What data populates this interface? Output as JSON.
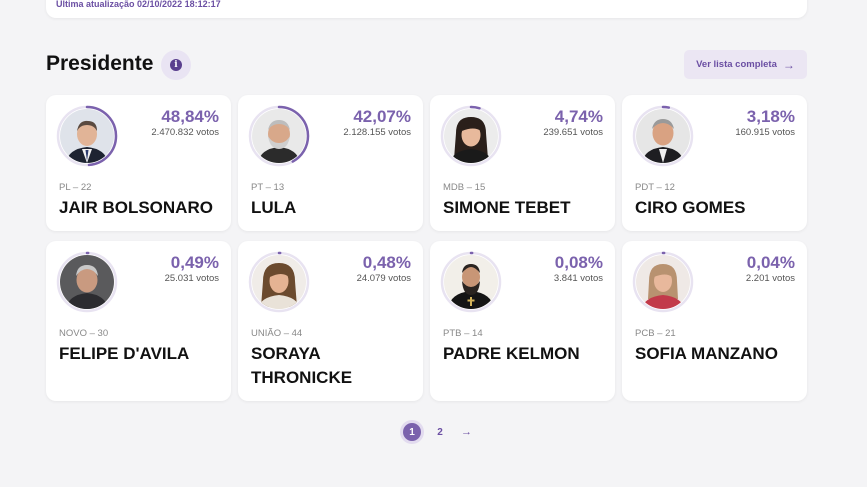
{
  "header": {
    "updated": "Última atualização 02/10/2022 18:12:17"
  },
  "section": {
    "title": "Presidente",
    "info_icon": "info-icon",
    "list_button": "Ver lista completa",
    "list_arrow": "→"
  },
  "colors": {
    "accent": "#7b62ad",
    "ring_track": "#e8e3f1"
  },
  "candidates": [
    {
      "pct": "48,84%",
      "share": 0.4884,
      "votes": "2.470.832 votos",
      "party": "PL – 22",
      "name": "JAIR BOLSONARO"
    },
    {
      "pct": "42,07%",
      "share": 0.4207,
      "votes": "2.128.155 votos",
      "party": "PT – 13",
      "name": "LULA"
    },
    {
      "pct": "4,74%",
      "share": 0.0474,
      "votes": "239.651 votos",
      "party": "MDB – 15",
      "name": "SIMONE TEBET"
    },
    {
      "pct": "3,18%",
      "share": 0.0318,
      "votes": "160.915 votos",
      "party": "PDT – 12",
      "name": "CIRO GOMES"
    },
    {
      "pct": "0,49%",
      "share": 0.0049,
      "votes": "25.031 votos",
      "party": "NOVO – 30",
      "name": "FELIPE D'AVILA"
    },
    {
      "pct": "0,48%",
      "share": 0.0048,
      "votes": "24.079 votos",
      "party": "UNIÃO – 44",
      "name": "SORAYA THRONICKE"
    },
    {
      "pct": "0,08%",
      "share": 0.0008,
      "votes": "3.841 votos",
      "party": "PTB – 14",
      "name": "PADRE KELMON"
    },
    {
      "pct": "0,04%",
      "share": 0.0004,
      "votes": "2.201 votos",
      "party": "PCB – 21",
      "name": "SOFIA MANZANO"
    }
  ],
  "pagination": {
    "pages": [
      "1",
      "2"
    ],
    "next": "→"
  }
}
